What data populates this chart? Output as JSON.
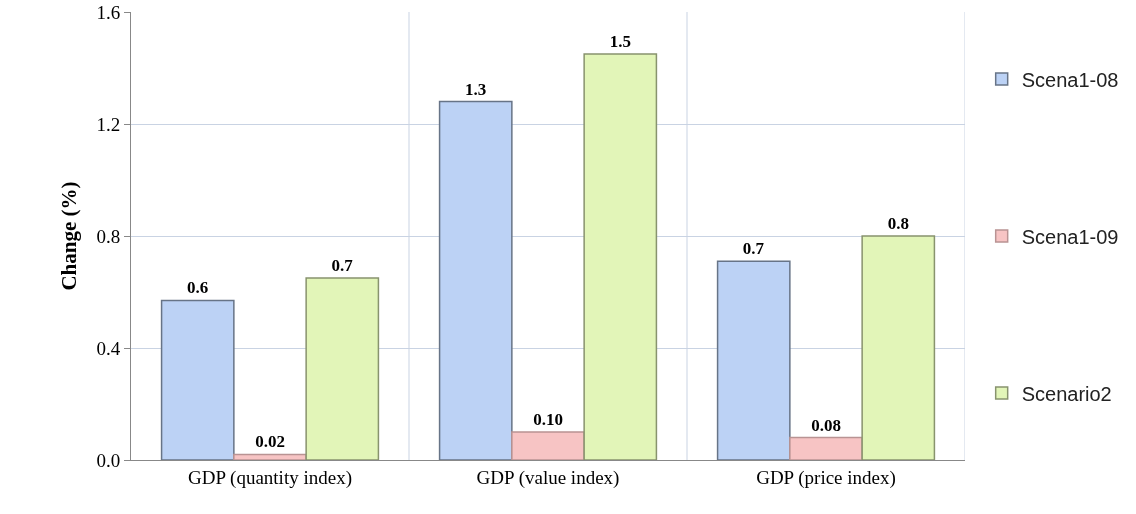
{
  "chart_data": {
    "type": "bar",
    "ylabel": "Change (%)",
    "categories": [
      "GDP (quantity index)",
      "GDP (value index)",
      "GDP (price index)"
    ],
    "series": [
      {
        "name": "Scena1-08",
        "color": "#bcd2f5",
        "values": [
          0.57,
          1.28,
          0.71
        ],
        "value_labels": [
          "0.6",
          "1.3",
          "0.7"
        ]
      },
      {
        "name": "Scena1-09",
        "color": "#f7c4c4",
        "values": [
          0.02,
          0.1,
          0.08
        ],
        "value_labels": [
          "0.02",
          "0.10",
          "0.08"
        ]
      },
      {
        "name": "Scenario2",
        "color": "#e2f5b8",
        "values": [
          0.65,
          1.45,
          0.8
        ],
        "value_labels": [
          "0.7",
          "1.5",
          "0.8"
        ]
      }
    ],
    "ylim": [
      0,
      1.6
    ],
    "yticks": [
      {
        "value": 0,
        "label": "0.0"
      },
      {
        "value": 0.4,
        "label": "0.4"
      },
      {
        "value": 0.8,
        "label": "0.8"
      },
      {
        "value": 1.2,
        "label": "1.2"
      },
      {
        "value": 1.6,
        "label": "1.6"
      }
    ],
    "grid": true,
    "legend": "right"
  }
}
